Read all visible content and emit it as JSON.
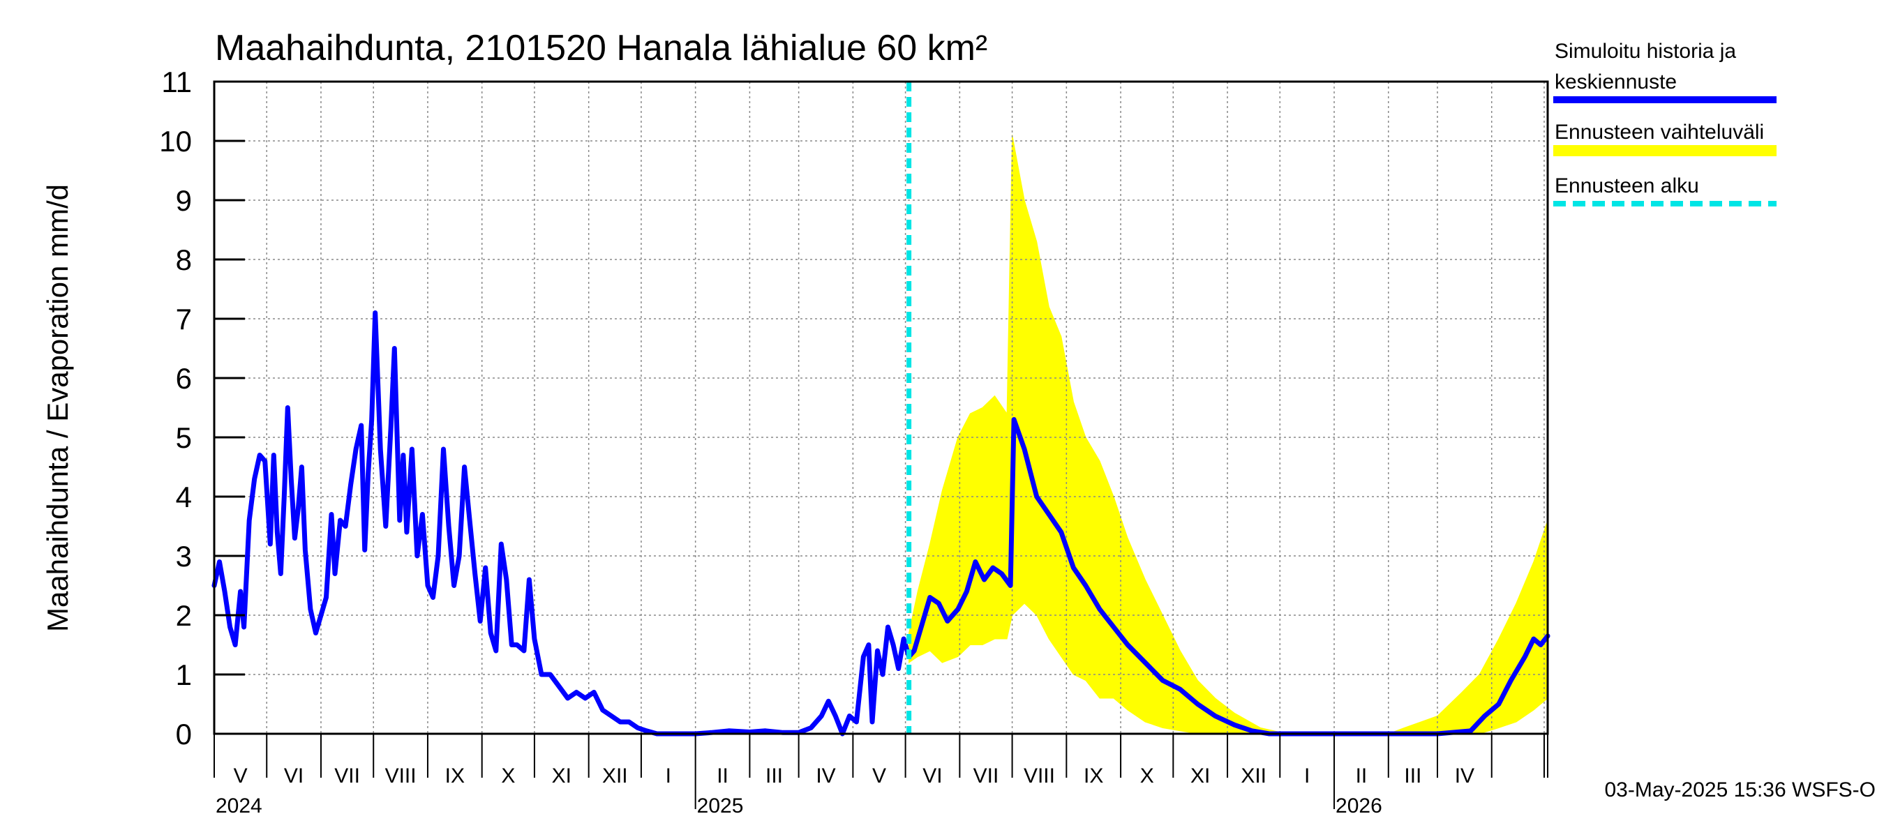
{
  "chart_data": {
    "type": "line",
    "title": "Maahaihdunta, 2101520 Hanala lähialue 60 km²",
    "ylabel": "Maahaihdunta / Evaporation   mm/d",
    "ylim": [
      0,
      11
    ],
    "yticks": [
      "0",
      "1",
      "2",
      "3",
      "4",
      "5",
      "6",
      "7",
      "8",
      "9",
      "10",
      "11"
    ],
    "xlim": [
      "2024-04-01",
      "2026-05-03"
    ],
    "grid": true,
    "months": [
      "V",
      "VI",
      "VII",
      "VIII",
      "IX",
      "X",
      "XI",
      "XII",
      "I",
      "II",
      "III",
      "IV",
      "V",
      "VI",
      "VII",
      "VIII",
      "IX",
      "X",
      "XI",
      "XII",
      "I",
      "II",
      "III",
      "IV"
    ],
    "years": [
      "2024",
      "2025",
      "2026"
    ],
    "forecast_start": "2025-05-03",
    "series": [
      {
        "name": "Simuloitu historia ja keskiennuste",
        "color": "#0000ff",
        "points": [
          [
            "2024-04-01",
            2.5
          ],
          [
            "2024-04-04",
            2.9
          ],
          [
            "2024-04-07",
            2.4
          ],
          [
            "2024-04-10",
            1.8
          ],
          [
            "2024-04-13",
            1.5
          ],
          [
            "2024-04-16",
            2.4
          ],
          [
            "2024-04-18",
            1.8
          ],
          [
            "2024-04-21",
            3.6
          ],
          [
            "2024-04-24",
            4.3
          ],
          [
            "2024-04-27",
            4.7
          ],
          [
            "2024-04-30",
            4.6
          ],
          [
            "2024-05-03",
            3.2
          ],
          [
            "2024-05-05",
            4.7
          ],
          [
            "2024-05-07",
            3.4
          ],
          [
            "2024-05-09",
            2.7
          ],
          [
            "2024-05-11",
            4.0
          ],
          [
            "2024-05-13",
            5.5
          ],
          [
            "2024-05-15",
            4.3
          ],
          [
            "2024-05-17",
            3.3
          ],
          [
            "2024-05-19",
            3.8
          ],
          [
            "2024-05-21",
            4.5
          ],
          [
            "2024-05-23",
            3.1
          ],
          [
            "2024-05-26",
            2.1
          ],
          [
            "2024-05-29",
            1.7
          ],
          [
            "2024-06-01",
            2.0
          ],
          [
            "2024-06-04",
            2.3
          ],
          [
            "2024-06-07",
            3.7
          ],
          [
            "2024-06-09",
            2.7
          ],
          [
            "2024-06-12",
            3.6
          ],
          [
            "2024-06-15",
            3.5
          ],
          [
            "2024-06-18",
            4.2
          ],
          [
            "2024-06-21",
            4.8
          ],
          [
            "2024-06-24",
            5.2
          ],
          [
            "2024-06-26",
            3.1
          ],
          [
            "2024-06-28",
            4.4
          ],
          [
            "2024-06-30",
            5.3
          ],
          [
            "2024-07-02",
            7.1
          ],
          [
            "2024-07-05",
            4.8
          ],
          [
            "2024-07-08",
            3.5
          ],
          [
            "2024-07-11",
            5.2
          ],
          [
            "2024-07-13",
            6.5
          ],
          [
            "2024-07-16",
            3.6
          ],
          [
            "2024-07-18",
            4.7
          ],
          [
            "2024-07-20",
            3.4
          ],
          [
            "2024-07-23",
            4.8
          ],
          [
            "2024-07-26",
            3.0
          ],
          [
            "2024-07-29",
            3.7
          ],
          [
            "2024-08-01",
            2.5
          ],
          [
            "2024-08-04",
            2.3
          ],
          [
            "2024-08-07",
            3.0
          ],
          [
            "2024-08-10",
            4.8
          ],
          [
            "2024-08-13",
            3.5
          ],
          [
            "2024-08-16",
            2.5
          ],
          [
            "2024-08-19",
            3.0
          ],
          [
            "2024-08-22",
            4.5
          ],
          [
            "2024-08-25",
            3.6
          ],
          [
            "2024-08-28",
            2.7
          ],
          [
            "2024-08-31",
            1.9
          ],
          [
            "2024-09-03",
            2.8
          ],
          [
            "2024-09-06",
            1.7
          ],
          [
            "2024-09-09",
            1.4
          ],
          [
            "2024-09-12",
            3.2
          ],
          [
            "2024-09-15",
            2.6
          ],
          [
            "2024-09-18",
            1.5
          ],
          [
            "2024-09-21",
            1.5
          ],
          [
            "2024-09-25",
            1.4
          ],
          [
            "2024-09-28",
            2.6
          ],
          [
            "2024-10-01",
            1.6
          ],
          [
            "2024-10-05",
            1.0
          ],
          [
            "2024-10-10",
            1.0
          ],
          [
            "2024-10-15",
            0.8
          ],
          [
            "2024-10-20",
            0.6
          ],
          [
            "2024-10-25",
            0.7
          ],
          [
            "2024-10-30",
            0.6
          ],
          [
            "2024-11-04",
            0.7
          ],
          [
            "2024-11-09",
            0.4
          ],
          [
            "2024-11-14",
            0.3
          ],
          [
            "2024-11-19",
            0.2
          ],
          [
            "2024-11-24",
            0.2
          ],
          [
            "2024-11-29",
            0.1
          ],
          [
            "2024-12-04",
            0.05
          ],
          [
            "2024-12-10",
            0.0
          ],
          [
            "2024-12-20",
            0.0
          ],
          [
            "2025-01-01",
            0.0
          ],
          [
            "2025-01-10",
            0.02
          ],
          [
            "2025-01-20",
            0.05
          ],
          [
            "2025-02-01",
            0.03
          ],
          [
            "2025-02-10",
            0.05
          ],
          [
            "2025-02-20",
            0.02
          ],
          [
            "2025-03-01",
            0.02
          ],
          [
            "2025-03-08",
            0.1
          ],
          [
            "2025-03-14",
            0.3
          ],
          [
            "2025-03-18",
            0.55
          ],
          [
            "2025-03-22",
            0.3
          ],
          [
            "2025-03-26",
            0.0
          ],
          [
            "2025-03-30",
            0.3
          ],
          [
            "2025-04-03",
            0.2
          ],
          [
            "2025-04-07",
            1.3
          ],
          [
            "2025-04-10",
            1.5
          ],
          [
            "2025-04-12",
            0.2
          ],
          [
            "2025-04-15",
            1.4
          ],
          [
            "2025-04-18",
            1.0
          ],
          [
            "2025-04-21",
            1.8
          ],
          [
            "2025-04-24",
            1.5
          ],
          [
            "2025-04-27",
            1.1
          ],
          [
            "2025-04-30",
            1.6
          ],
          [
            "2025-05-03",
            1.3
          ],
          [
            "2025-05-06",
            1.4
          ],
          [
            "2025-05-10",
            1.8
          ],
          [
            "2025-05-15",
            2.3
          ],
          [
            "2025-05-20",
            2.2
          ],
          [
            "2025-05-25",
            1.9
          ],
          [
            "2025-05-31",
            2.1
          ],
          [
            "2025-06-05",
            2.4
          ],
          [
            "2025-06-10",
            2.9
          ],
          [
            "2025-06-15",
            2.6
          ],
          [
            "2025-06-20",
            2.8
          ],
          [
            "2025-06-25",
            2.7
          ],
          [
            "2025-06-30",
            2.5
          ],
          [
            "2025-07-02",
            5.3
          ],
          [
            "2025-07-08",
            4.8
          ],
          [
            "2025-07-15",
            4.0
          ],
          [
            "2025-07-22",
            3.7
          ],
          [
            "2025-07-29",
            3.4
          ],
          [
            "2025-08-05",
            2.8
          ],
          [
            "2025-08-12",
            2.5
          ],
          [
            "2025-08-20",
            2.1
          ],
          [
            "2025-08-28",
            1.8
          ],
          [
            "2025-09-05",
            1.5
          ],
          [
            "2025-09-15",
            1.2
          ],
          [
            "2025-09-25",
            0.9
          ],
          [
            "2025-10-05",
            0.75
          ],
          [
            "2025-10-15",
            0.5
          ],
          [
            "2025-10-25",
            0.3
          ],
          [
            "2025-11-05",
            0.15
          ],
          [
            "2025-11-15",
            0.05
          ],
          [
            "2025-11-25",
            0.0
          ],
          [
            "2026-01-01",
            0.0
          ],
          [
            "2026-02-01",
            0.0
          ],
          [
            "2026-03-01",
            0.0
          ],
          [
            "2026-03-20",
            0.05
          ],
          [
            "2026-03-28",
            0.3
          ],
          [
            "2026-04-05",
            0.5
          ],
          [
            "2026-04-12",
            0.9
          ],
          [
            "2026-04-20",
            1.3
          ],
          [
            "2026-04-25",
            1.6
          ],
          [
            "2026-04-29",
            1.5
          ],
          [
            "2026-05-03",
            1.65
          ]
        ]
      },
      {
        "name": "Ennusteen vaihteluväli",
        "color": "#ffff00",
        "band": [
          [
            "2025-05-03",
            1.2,
            1.7
          ],
          [
            "2025-05-08",
            1.3,
            2.4
          ],
          [
            "2025-05-15",
            1.4,
            3.2
          ],
          [
            "2025-05-22",
            1.2,
            4.1
          ],
          [
            "2025-05-31",
            1.3,
            5.0
          ],
          [
            "2025-06-07",
            1.5,
            5.4
          ],
          [
            "2025-06-14",
            1.5,
            5.5
          ],
          [
            "2025-06-21",
            1.6,
            5.7
          ],
          [
            "2025-06-28",
            1.6,
            5.4
          ],
          [
            "2025-07-01",
            2.0,
            10.1
          ],
          [
            "2025-07-08",
            2.2,
            9.0
          ],
          [
            "2025-07-15",
            2.0,
            8.3
          ],
          [
            "2025-07-22",
            1.6,
            7.2
          ],
          [
            "2025-07-29",
            1.3,
            6.7
          ],
          [
            "2025-08-05",
            1.0,
            5.6
          ],
          [
            "2025-08-12",
            0.9,
            5.0
          ],
          [
            "2025-08-20",
            0.6,
            4.6
          ],
          [
            "2025-08-28",
            0.6,
            4.0
          ],
          [
            "2025-09-05",
            0.4,
            3.3
          ],
          [
            "2025-09-15",
            0.2,
            2.6
          ],
          [
            "2025-09-25",
            0.1,
            2.0
          ],
          [
            "2025-10-05",
            0.05,
            1.4
          ],
          [
            "2025-10-15",
            0.0,
            0.9
          ],
          [
            "2025-10-25",
            0.0,
            0.6
          ],
          [
            "2025-11-05",
            0.0,
            0.35
          ],
          [
            "2025-11-20",
            0.0,
            0.1
          ],
          [
            "2025-12-05",
            0.0,
            0.0
          ],
          [
            "2026-02-01",
            0.0,
            0.0
          ],
          [
            "2026-02-10",
            0.0,
            0.1
          ],
          [
            "2026-03-01",
            0.0,
            0.3
          ],
          [
            "2026-03-15",
            0.0,
            0.7
          ],
          [
            "2026-03-25",
            0.0,
            1.0
          ],
          [
            "2026-04-05",
            0.1,
            1.6
          ],
          [
            "2026-04-15",
            0.2,
            2.2
          ],
          [
            "2026-04-25",
            0.4,
            2.9
          ],
          [
            "2026-05-03",
            0.6,
            3.6
          ]
        ]
      },
      {
        "name": "Ennusteen alku",
        "color": "#00e5e5"
      }
    ]
  },
  "legend": {
    "items": [
      {
        "line1": "Simuloitu historia ja",
        "line2": "keskiennuste"
      },
      {
        "line1": "Ennusteen vaihteluväli"
      },
      {
        "line1": "Ennusteen alku"
      }
    ]
  },
  "footer": {
    "timestamp": "03-May-2025 15:36 WSFS-O"
  }
}
